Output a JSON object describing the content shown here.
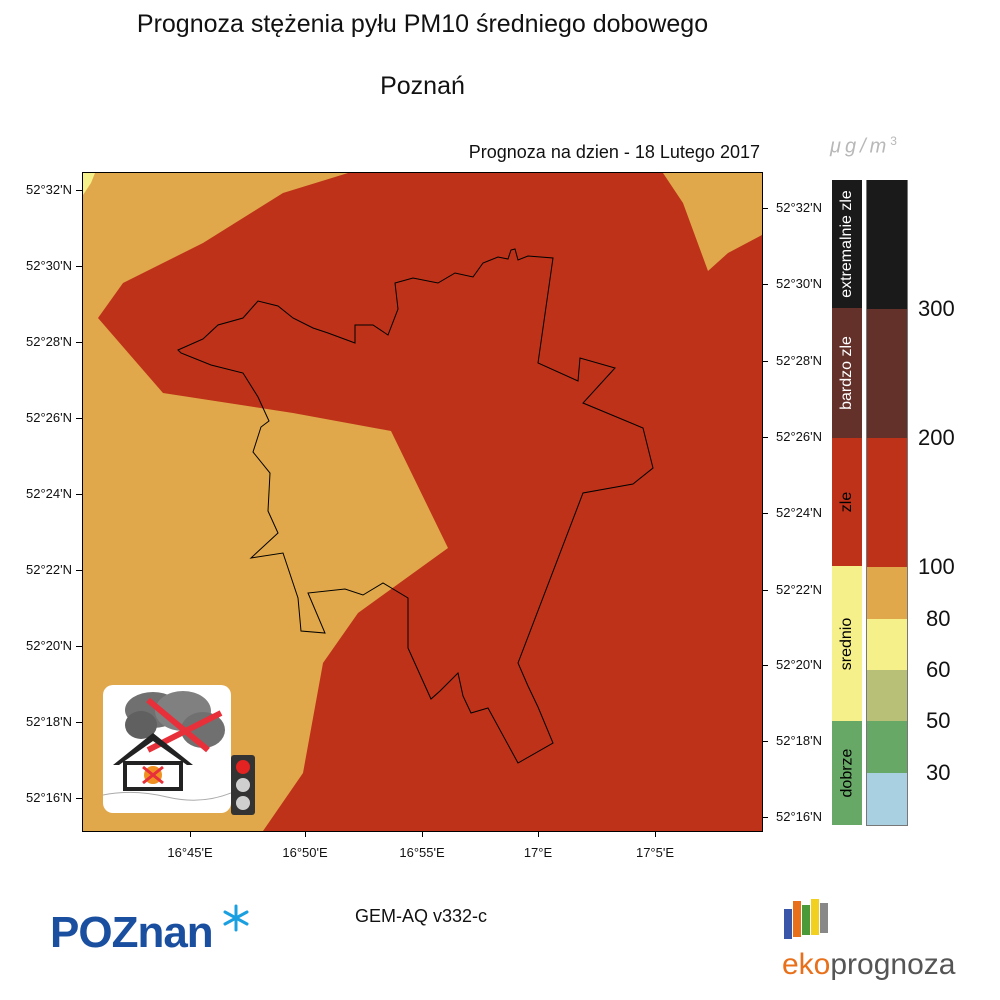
{
  "header": {
    "title": "Prognoza stężenia pyłu PM10 średniego dobowego",
    "city": "Poznań",
    "forecast_label": "Prognoza na dzien -  18 Lutego 2017",
    "unit": "μg/m",
    "unit_exponent": "3"
  },
  "map": {
    "lat_labels_left": [
      "52°32'N",
      "52°30'N",
      "52°28'N",
      "52°26'N",
      "52°24'N",
      "52°22'N",
      "52°20'N",
      "52°18'N",
      "52°16'N"
    ],
    "lat_labels_right": [
      "52°32'N",
      "52°30'N",
      "52°28'N",
      "52°26'N",
      "52°24'N",
      "52°22'N",
      "52°20'N",
      "52°18'N",
      "52°16'N"
    ],
    "lon_labels": [
      "16°45'E",
      "16°50'E",
      "16°55'E",
      "17°E",
      "17°5'E"
    ],
    "colors": {
      "moderate_high": "#e0a84a",
      "bad": "#bd3219",
      "boundary": "#000000"
    },
    "icons": [
      "no-smoke-burning-icon",
      "traffic-light-icon"
    ]
  },
  "legend": {
    "categories": [
      {
        "label": "extremalnie zle",
        "color": "#1a1a1a",
        "text_color": "#ffffff"
      },
      {
        "label": "bardzo zle",
        "color": "#63302a",
        "text_color": "#ffffff"
      },
      {
        "label": "zle",
        "color": "#bd3219",
        "text_color": "#000000"
      },
      {
        "label": "srednio",
        "color": "#f5f08a",
        "text_color": "#000000"
      },
      {
        "label": "dobrze",
        "color": "#67a867",
        "text_color": "#000000"
      }
    ],
    "scale_colors": [
      "#1a1a1a",
      "#63302a",
      "#bd3219",
      "#e0a84a",
      "#f5f08a",
      "#b8c078",
      "#67a867",
      "#a8d0e0"
    ],
    "thresholds": [
      "300",
      "200",
      "100",
      "80",
      "60",
      "50",
      "30"
    ]
  },
  "footer": {
    "model": "GEM-AQ v332-c",
    "poznan_logo_text": "POZnan",
    "eko_prefix": "eko",
    "eko_suffix": "prognoza"
  }
}
